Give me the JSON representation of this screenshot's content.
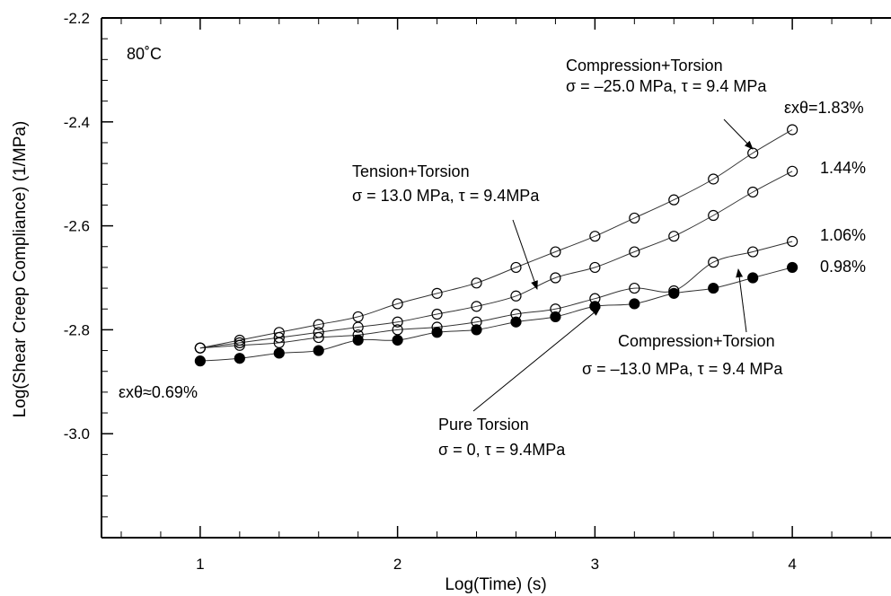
{
  "chart_data": {
    "type": "scatter",
    "xlabel": "Log(Time) (s)",
    "ylabel": "Log(Shear Creep Compliance) (1/MPa)",
    "xlim": [
      0.5,
      4.5
    ],
    "ylim": [
      -3.2,
      -2.2
    ],
    "x_ticks": [
      "1",
      "2",
      "3",
      "4"
    ],
    "y_ticks": [
      "-2.2",
      "-2.4",
      "-2.6",
      "-2.8",
      "-3.0"
    ],
    "grid": false,
    "legend": "none",
    "series": [
      {
        "marker": "open-circle",
        "end_label": "εxθ=1.83%",
        "x": [
          1.0,
          1.2,
          1.4,
          1.6,
          1.8,
          2.0,
          2.2,
          2.4,
          2.6,
          2.8,
          3.0,
          3.2,
          3.4,
          3.6,
          3.8,
          4.0
        ],
        "y": [
          -2.835,
          -2.82,
          -2.805,
          -2.79,
          -2.775,
          -2.75,
          -2.73,
          -2.71,
          -2.68,
          -2.65,
          -2.62,
          -2.585,
          -2.55,
          -2.51,
          -2.46,
          -2.415
        ]
      },
      {
        "marker": "open-circle",
        "end_label": "1.44%",
        "x": [
          1.0,
          1.2,
          1.4,
          1.6,
          1.8,
          2.0,
          2.2,
          2.4,
          2.6,
          2.8,
          3.0,
          3.2,
          3.4,
          3.6,
          3.8,
          4.0
        ],
        "y": [
          -2.835,
          -2.825,
          -2.815,
          -2.805,
          -2.795,
          -2.785,
          -2.77,
          -2.755,
          -2.735,
          -2.7,
          -2.68,
          -2.65,
          -2.62,
          -2.58,
          -2.535,
          -2.495
        ]
      },
      {
        "marker": "open-circle",
        "end_label": "1.06%",
        "x": [
          1.0,
          1.2,
          1.4,
          1.6,
          1.8,
          2.0,
          2.2,
          2.4,
          2.6,
          2.8,
          3.0,
          3.2,
          3.4,
          3.6,
          3.8,
          4.0
        ],
        "y": [
          -2.835,
          -2.83,
          -2.825,
          -2.815,
          -2.81,
          -2.8,
          -2.795,
          -2.785,
          -2.77,
          -2.76,
          -2.74,
          -2.72,
          -2.725,
          -2.67,
          -2.65,
          -2.63
        ]
      },
      {
        "marker": "filled-circle",
        "end_label": "0.98%",
        "x": [
          1.0,
          1.2,
          1.4,
          1.6,
          1.8,
          2.0,
          2.2,
          2.4,
          2.6,
          2.8,
          3.0,
          3.2,
          3.4,
          3.6,
          3.8,
          4.0
        ],
        "y": [
          -2.86,
          -2.855,
          -2.845,
          -2.84,
          -2.82,
          -2.82,
          -2.805,
          -2.8,
          -2.785,
          -2.775,
          -2.755,
          -2.75,
          -2.73,
          -2.72,
          -2.7,
          -2.68
        ]
      }
    ],
    "annotations": {
      "temperature": "80˚C",
      "start_strain": "εxθ≈0.69%",
      "comp25_title": "Compression+Torsion",
      "comp25_stress": "σ = –25.0 MPa, τ = 9.4 MPa",
      "tension_title": "Tension+Torsion",
      "tension_stress": "σ = 13.0 MPa, τ = 9.4MPa",
      "comp13_title": "Compression+Torsion",
      "comp13_stress": "σ = –13.0 MPa, τ = 9.4 MPa",
      "pure_title": "Pure Torsion",
      "pure_stress": "σ = 0, τ = 9.4MPa"
    }
  }
}
